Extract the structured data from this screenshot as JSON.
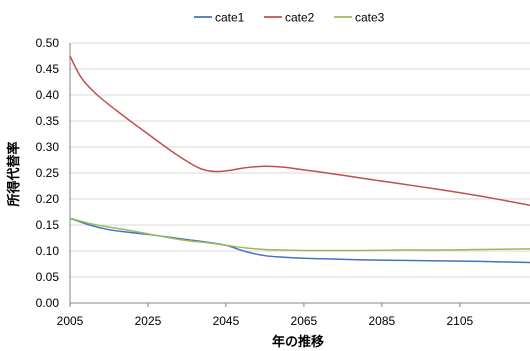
{
  "chart_data": {
    "type": "line",
    "title": "",
    "xlabel": "年の推移",
    "ylabel": "所得代替率",
    "xlim": [
      2005,
      2123
    ],
    "ylim": [
      0,
      0.5
    ],
    "x_ticks": [
      "2005",
      "2025",
      "2045",
      "2065",
      "2085",
      "2105"
    ],
    "y_ticks": [
      "0.00",
      "0.05",
      "0.10",
      "0.15",
      "0.20",
      "0.25",
      "0.30",
      "0.35",
      "0.40",
      "0.45",
      "0.50"
    ],
    "grid": "horizontal",
    "legend_position": "top",
    "series": [
      {
        "name": "cate1",
        "color": "#4472c4",
        "x": [
          2005,
          2010,
          2015,
          2020,
          2025,
          2030,
          2035,
          2040,
          2045,
          2050,
          2055,
          2060,
          2065,
          2070,
          2080,
          2090,
          2100,
          2110,
          2123
        ],
        "y": [
          0.163,
          0.15,
          0.141,
          0.136,
          0.132,
          0.127,
          0.122,
          0.117,
          0.111,
          0.099,
          0.091,
          0.088,
          0.086,
          0.085,
          0.083,
          0.082,
          0.081,
          0.08,
          0.078
        ]
      },
      {
        "name": "cate2",
        "color": "#c0504d",
        "x": [
          2005,
          2008,
          2012,
          2018,
          2025,
          2032,
          2038,
          2042,
          2046,
          2050,
          2055,
          2060,
          2065,
          2070,
          2080,
          2090,
          2100,
          2110,
          2123
        ],
        "y": [
          0.475,
          0.432,
          0.4,
          0.364,
          0.325,
          0.287,
          0.26,
          0.253,
          0.255,
          0.26,
          0.263,
          0.261,
          0.256,
          0.251,
          0.24,
          0.229,
          0.218,
          0.206,
          0.188
        ]
      },
      {
        "name": "cate3",
        "color": "#9bbb59",
        "x": [
          2005,
          2010,
          2015,
          2020,
          2025,
          2030,
          2035,
          2040,
          2045,
          2050,
          2055,
          2060,
          2065,
          2070,
          2080,
          2090,
          2100,
          2110,
          2123
        ],
        "y": [
          0.163,
          0.153,
          0.146,
          0.14,
          0.133,
          0.126,
          0.12,
          0.116,
          0.111,
          0.106,
          0.103,
          0.102,
          0.101,
          0.101,
          0.101,
          0.102,
          0.102,
          0.103,
          0.104
        ]
      }
    ]
  }
}
